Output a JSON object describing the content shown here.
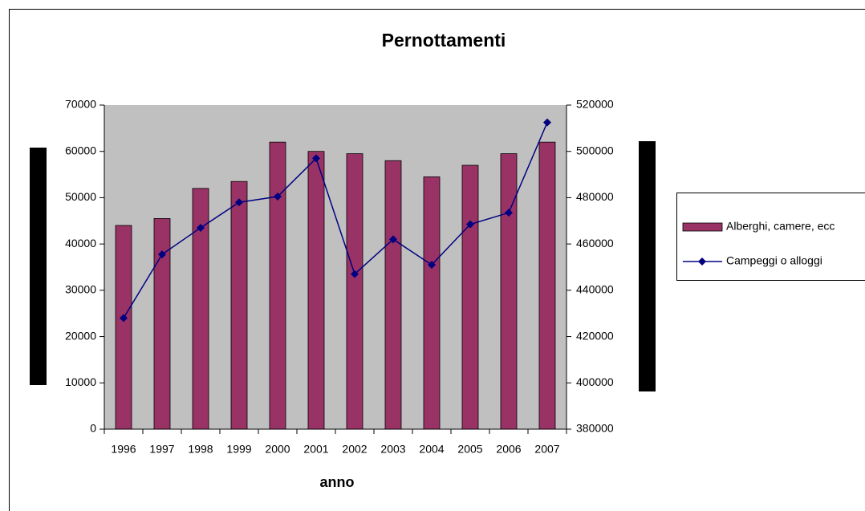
{
  "chart_data": {
    "type": "bar-line",
    "title": "Pernottamenti",
    "x_label": "anno",
    "categories": [
      "1996",
      "1997",
      "1998",
      "1999",
      "2000",
      "2001",
      "2002",
      "2003",
      "2004",
      "2005",
      "2006",
      "2007"
    ],
    "series": [
      {
        "name": "Alberghi, camere, ecc",
        "type": "bar",
        "color": "#993366",
        "values": [
          44000,
          45500,
          52000,
          53500,
          62000,
          60000,
          59500,
          58000,
          54500,
          57000,
          59500,
          62000
        ]
      },
      {
        "name": "Campeggi o alloggi",
        "type": "line",
        "axis": "y2",
        "color": "#000080",
        "values": [
          428000,
          455500,
          467000,
          478000,
          480500,
          497000,
          447000,
          462000,
          451000,
          468500,
          473500,
          512500
        ]
      }
    ],
    "ylim": [
      0,
      70000
    ],
    "yticks": [
      0,
      10000,
      20000,
      30000,
      40000,
      50000,
      60000,
      70000
    ],
    "y2lim": [
      380000,
      520000
    ],
    "y2ticks": [
      380000,
      400000,
      420000,
      440000,
      460000,
      480000,
      500000,
      520000
    ],
    "grid": false,
    "legend": "right",
    "plot_background": "#c0c0c0"
  }
}
